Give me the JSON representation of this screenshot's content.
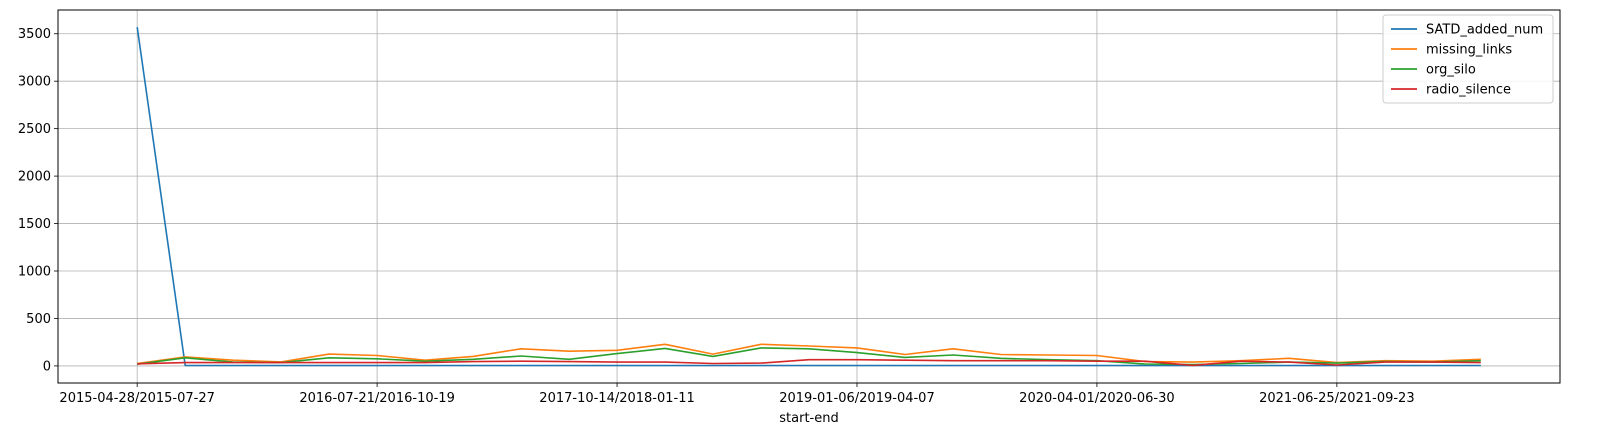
{
  "chart_data": {
    "type": "line",
    "xlabel": "start-end",
    "ylabel": "",
    "ylim": [
      -180,
      3750
    ],
    "grid": true,
    "legend": "top-right",
    "x_tick_labels": [
      {
        "index": 0,
        "label": "2015-04-28/2015-07-27"
      },
      {
        "index": 5,
        "label": "2016-07-21/2016-10-19"
      },
      {
        "index": 10,
        "label": "2017-10-14/2018-01-11"
      },
      {
        "index": 15,
        "label": "2019-01-06/2019-04-07"
      },
      {
        "index": 20,
        "label": "2020-04-01/2020-06-30"
      },
      {
        "index": 25,
        "label": "2021-06-25/2021-09-23"
      }
    ],
    "y_ticks": [
      0,
      500,
      1000,
      1500,
      2000,
      2500,
      3000,
      3500
    ],
    "x": [
      0,
      1,
      2,
      3,
      4,
      5,
      6,
      7,
      8,
      9,
      10,
      11,
      12,
      13,
      14,
      15,
      16,
      17,
      18,
      19,
      20,
      21,
      22,
      23,
      24,
      25,
      26,
      27,
      28
    ],
    "series": [
      {
        "name": "SATD_added_num",
        "color": "#1f77b4",
        "values": [
          3570,
          4,
          4,
          4,
          4,
          4,
          4,
          4,
          4,
          4,
          4,
          4,
          4,
          4,
          4,
          4,
          4,
          4,
          4,
          4,
          4,
          4,
          4,
          4,
          4,
          4,
          4,
          4,
          4
        ]
      },
      {
        "name": "missing_links",
        "color": "#ff7f0e",
        "values": [
          25,
          95,
          60,
          42,
          125,
          110,
          60,
          100,
          180,
          155,
          165,
          228,
          125,
          228,
          210,
          190,
          120,
          180,
          120,
          115,
          110,
          45,
          40,
          55,
          80,
          35,
          55,
          50,
          70
        ]
      },
      {
        "name": "org_silo",
        "color": "#2ca02c",
        "values": [
          18,
          85,
          40,
          35,
          85,
          75,
          50,
          70,
          105,
          70,
          130,
          185,
          100,
          190,
          180,
          140,
          90,
          115,
          80,
          65,
          55,
          20,
          15,
          25,
          40,
          30,
          45,
          40,
          55
        ]
      },
      {
        "name": "radio_silence",
        "color": "#d62728",
        "values": [
          22,
          35,
          35,
          35,
          35,
          35,
          35,
          45,
          50,
          45,
          40,
          40,
          25,
          30,
          65,
          65,
          60,
          55,
          55,
          55,
          50,
          50,
          5,
          50,
          40,
          10,
          40,
          40,
          35
        ]
      }
    ]
  }
}
